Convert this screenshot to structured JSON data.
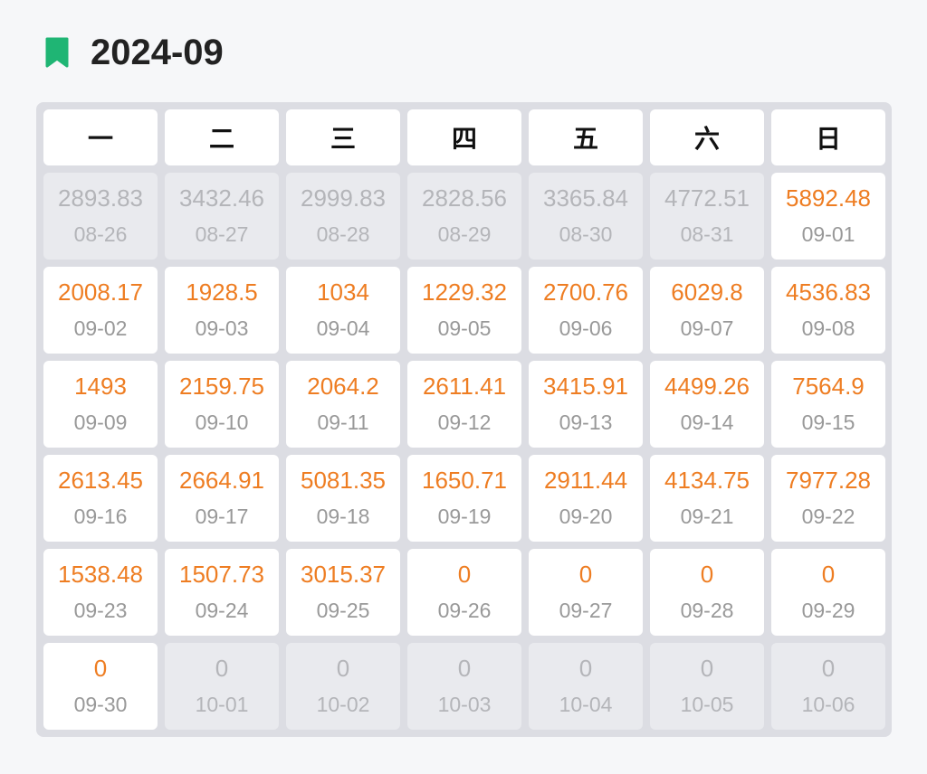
{
  "header": {
    "title": "2024-09"
  },
  "calendar": {
    "weekdays": [
      "一",
      "二",
      "三",
      "四",
      "五",
      "六",
      "日"
    ],
    "weeks": [
      [
        {
          "value": 2893.83,
          "date": "08-26"
        },
        {
          "value": 3432.46,
          "date": "08-27"
        },
        {
          "value": 2999.83,
          "date": "08-28"
        },
        {
          "value": 2828.56,
          "date": "08-29"
        },
        {
          "value": 3365.84,
          "date": "08-30"
        },
        {
          "value": 4772.51,
          "date": "08-31"
        },
        {
          "value": 5892.48,
          "date": "09-01"
        }
      ],
      [
        {
          "value": 2008.17,
          "date": "09-02"
        },
        {
          "value": 1928.5,
          "date": "09-03"
        },
        {
          "value": 1034,
          "date": "09-04"
        },
        {
          "value": 1229.32,
          "date": "09-05"
        },
        {
          "value": 2700.76,
          "date": "09-06"
        },
        {
          "value": 6029.8,
          "date": "09-07"
        },
        {
          "value": 4536.83,
          "date": "09-08"
        }
      ],
      [
        {
          "value": 1493,
          "date": "09-09"
        },
        {
          "value": 2159.75,
          "date": "09-10"
        },
        {
          "value": 2064.2,
          "date": "09-11"
        },
        {
          "value": 2611.41,
          "date": "09-12"
        },
        {
          "value": 3415.91,
          "date": "09-13"
        },
        {
          "value": 4499.26,
          "date": "09-14"
        },
        {
          "value": 7564.9,
          "date": "09-15"
        }
      ],
      [
        {
          "value": 2613.45,
          "date": "09-16"
        },
        {
          "value": 2664.91,
          "date": "09-17"
        },
        {
          "value": 5081.35,
          "date": "09-18"
        },
        {
          "value": 1650.71,
          "date": "09-19"
        },
        {
          "value": 2911.44,
          "date": "09-20"
        },
        {
          "value": 4134.75,
          "date": "09-21"
        },
        {
          "value": 7977.28,
          "date": "09-22"
        }
      ],
      [
        {
          "value": 1538.48,
          "date": "09-23"
        },
        {
          "value": 1507.73,
          "date": "09-24"
        },
        {
          "value": 3015.37,
          "date": "09-25"
        },
        {
          "value": 0,
          "date": "09-26"
        },
        {
          "value": 0,
          "date": "09-27"
        },
        {
          "value": 0,
          "date": "09-28"
        },
        {
          "value": 0,
          "date": "09-29"
        }
      ],
      [
        {
          "value": 0,
          "date": "09-30"
        },
        {
          "value": 0,
          "date": "10-01"
        },
        {
          "value": 0,
          "date": "10-02"
        },
        {
          "value": 0,
          "date": "10-03"
        },
        {
          "value": 0,
          "date": "10-04"
        },
        {
          "value": 0,
          "date": "10-05"
        },
        {
          "value": 0,
          "date": "10-06"
        }
      ]
    ]
  }
}
